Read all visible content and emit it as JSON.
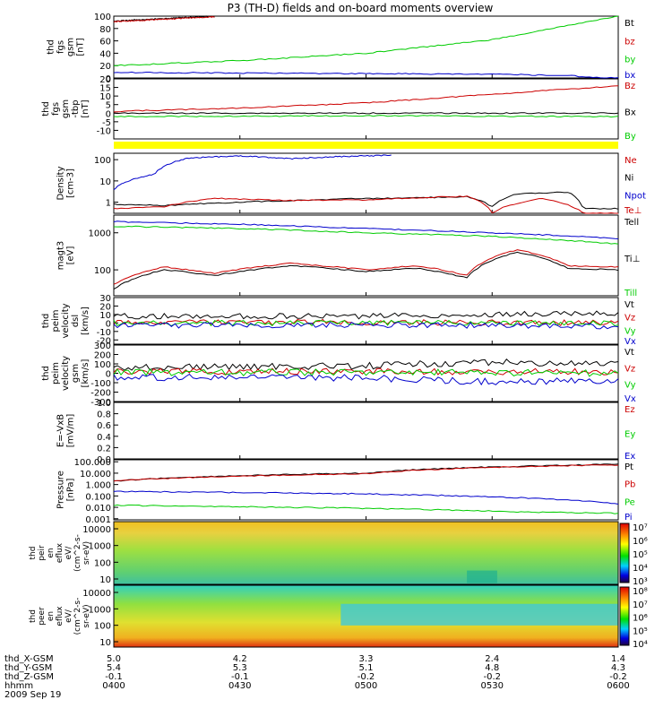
{
  "title": "P3 (TH-D) fields and on-board moments overview",
  "chart_data": {
    "type": "line",
    "panels": [
      {
        "ylabel": [
          "thd",
          "fgs",
          "gsm",
          "[nT]"
        ],
        "yticks": [
          "100",
          "80",
          "60",
          "40",
          "20",
          "0"
        ],
        "ylim": [
          0,
          100
        ],
        "legend": [
          {
            "label": "Bt",
            "color": "#000000"
          },
          {
            "label": "bz",
            "color": "#cc0000"
          },
          {
            "label": "by",
            "color": "#00cc00"
          },
          {
            "label": "bx",
            "color": "#0000cc"
          }
        ],
        "series": [
          {
            "color": "#000000",
            "x": [
              0,
              0.2
            ],
            "y": [
              92,
              100
            ]
          },
          {
            "color": "#cc0000",
            "x": [
              0,
              0.2
            ],
            "y": [
              91,
              99
            ]
          },
          {
            "color": "#00cc00",
            "x": [
              0,
              0.25,
              0.5,
              0.75,
              1
            ],
            "y": [
              20,
              28,
              40,
              62,
              100
            ]
          },
          {
            "color": "#0000cc",
            "x": [
              0,
              0.25,
              0.5,
              0.75,
              0.9,
              1
            ],
            "y": [
              9,
              8,
              7,
              6,
              4,
              -2
            ]
          }
        ]
      },
      {
        "ylabel": [
          "thd",
          "fgs",
          "gsm",
          "-tbp",
          "[nT]"
        ],
        "yticks": [
          "20",
          "15",
          "10",
          "5",
          "0",
          "-5",
          "-10"
        ],
        "ylim": [
          -15,
          20
        ],
        "legend": [
          {
            "label": "Bz",
            "color": "#cc0000"
          },
          {
            "label": "Bx",
            "color": "#000000"
          },
          {
            "label": "By",
            "color": "#00cc00"
          }
        ],
        "series": [
          {
            "color": "#cc0000",
            "x": [
              0,
              0.25,
              0.5,
              0.75,
              1
            ],
            "y": [
              1,
              3,
              6,
              11,
              16
            ]
          },
          {
            "color": "#000000",
            "x": [
              0,
              0.5,
              1
            ],
            "y": [
              0,
              0,
              0
            ]
          },
          {
            "color": "#00cc00",
            "x": [
              0,
              0.5,
              1
            ],
            "y": [
              -2,
              -1.5,
              -2
            ]
          }
        ]
      },
      {
        "ylabel": [
          "Density",
          "[cm-3]"
        ],
        "yticks": [
          "100",
          "10",
          "1"
        ],
        "ylog": true,
        "ylim": [
          0.3,
          200
        ],
        "legend": [
          {
            "label": "Ne",
            "color": "#cc0000"
          },
          {
            "label": "Ni",
            "color": "#000000"
          },
          {
            "label": "Npot",
            "color": "#0000cc"
          },
          {
            "label": "Te⊥",
            "color": "#cc0000"
          }
        ],
        "series": [
          {
            "color": "#0000cc",
            "x": [
              0,
              0.08,
              0.15,
              0.25,
              0.35,
              0.45,
              0.55
            ],
            "y": [
              4,
              20,
              120,
              150,
              110,
              140,
              160
            ]
          },
          {
            "color": "#000000",
            "x": [
              0,
              0.1,
              0.2,
              0.35,
              0.5,
              0.6,
              0.7,
              0.75,
              0.8,
              0.9,
              0.93,
              1
            ],
            "y": [
              0.8,
              0.7,
              0.9,
              1.2,
              1.5,
              1.6,
              1.8,
              0.6,
              2.5,
              3,
              0.5,
              0.5
            ]
          },
          {
            "color": "#cc0000",
            "x": [
              0,
              0.1,
              0.2,
              0.35,
              0.5,
              0.6,
              0.7,
              0.75,
              0.85,
              0.93,
              1
            ],
            "y": [
              0.5,
              0.6,
              1.5,
              1.2,
              1.3,
              1.6,
              1.9,
              0.3,
              1.5,
              0.3,
              0.3
            ]
          }
        ]
      },
      {
        "ylabel": [
          "magt3",
          "[eV]"
        ],
        "yticks": [
          "1000",
          "100"
        ],
        "ylog": true,
        "ylim": [
          20,
          3000
        ],
        "legend": [
          {
            "label": "Tell",
            "color": "#000000"
          },
          {
            "label": "Ti⊥",
            "color": "#000000"
          },
          {
            "label": "Till",
            "color": "#00cc00"
          }
        ],
        "series": [
          {
            "color": "#0000cc",
            "x": [
              0,
              0.25,
              0.5,
              0.75,
              1
            ],
            "y": [
              2000,
              1700,
              1300,
              1000,
              700
            ]
          },
          {
            "color": "#00cc00",
            "x": [
              0,
              0.25,
              0.5,
              0.75,
              1
            ],
            "y": [
              1500,
              1300,
              1000,
              800,
              500
            ]
          },
          {
            "color": "#cc0000",
            "x": [
              0,
              0.1,
              0.2,
              0.35,
              0.5,
              0.6,
              0.7,
              0.8,
              0.9,
              1
            ],
            "y": [
              40,
              120,
              80,
              150,
              100,
              130,
              70,
              350,
              130,
              120
            ]
          },
          {
            "color": "#000000",
            "x": [
              0,
              0.1,
              0.2,
              0.35,
              0.5,
              0.6,
              0.7,
              0.8,
              0.9,
              1
            ],
            "y": [
              30,
              100,
              70,
              130,
              90,
              110,
              60,
              300,
              110,
              100
            ]
          }
        ]
      },
      {
        "ylabel": [
          "thd",
          "peim",
          "velocity",
          "dsl",
          "[km/s]"
        ],
        "yticks": [
          "30",
          "20",
          "10",
          "0",
          "-10",
          "-20"
        ],
        "ylim": [
          -25,
          30
        ],
        "legend": [
          {
            "label": "Vt",
            "color": "#000000"
          },
          {
            "label": "Vz",
            "color": "#cc0000"
          },
          {
            "label": "Vy",
            "color": "#00cc00"
          },
          {
            "label": "Vx",
            "color": "#0000cc"
          }
        ],
        "series": [
          {
            "color": "#000000",
            "x": [
              0,
              0.5,
              1
            ],
            "y": [
              8,
              8,
              12
            ]
          },
          {
            "color": "#cc0000",
            "x": [
              0,
              0.5,
              1
            ],
            "y": [
              0,
              1,
              0
            ]
          },
          {
            "color": "#00cc00",
            "x": [
              0,
              0.5,
              1
            ],
            "y": [
              0,
              0,
              0
            ]
          },
          {
            "color": "#0000cc",
            "x": [
              0,
              0.5,
              1
            ],
            "y": [
              -3,
              -2,
              -4
            ]
          }
        ]
      },
      {
        "ylabel": [
          "thd",
          "peim",
          "velocity",
          "gsm",
          "[km/s]"
        ],
        "yticks": [
          "300",
          "200",
          "100",
          "0",
          "-100",
          "-200",
          "-300"
        ],
        "ylim": [
          -300,
          300
        ],
        "legend": [
          {
            "label": "Vt",
            "color": "#000000"
          },
          {
            "label": "Vz",
            "color": "#cc0000"
          },
          {
            "label": "Vy",
            "color": "#00cc00"
          },
          {
            "label": "Vx",
            "color": "#0000cc"
          }
        ],
        "series": [
          {
            "color": "#000000",
            "x": [
              0,
              0.5,
              0.75,
              1
            ],
            "y": [
              60,
              80,
              120,
              90
            ]
          },
          {
            "color": "#cc0000",
            "x": [
              0,
              0.5,
              1
            ],
            "y": [
              20,
              20,
              20
            ]
          },
          {
            "color": "#00cc00",
            "x": [
              0,
              0.5,
              1
            ],
            "y": [
              10,
              10,
              0
            ]
          },
          {
            "color": "#0000cc",
            "x": [
              0,
              0.5,
              0.75,
              1
            ],
            "y": [
              -40,
              -50,
              -90,
              -80
            ]
          }
        ]
      },
      {
        "ylabel": [
          "E=-VxB",
          "[mV/m]"
        ],
        "yticks": [
          "1.0",
          "0.8",
          "0.6",
          "0.4",
          "0.2",
          "0.0"
        ],
        "ylim": [
          0,
          1
        ],
        "legend": [
          {
            "label": "Ez",
            "color": "#cc0000"
          },
          {
            "label": "Ey",
            "color": "#00cc00"
          },
          {
            "label": "Ex",
            "color": "#0000cc"
          }
        ],
        "series": []
      },
      {
        "ylabel": [
          "Pressure",
          "[nPa]"
        ],
        "yticks": [
          "100.000",
          "10.000",
          "1.000",
          "0.100",
          "0.010",
          "0.001"
        ],
        "ylog": true,
        "ylim": [
          0.0008,
          150
        ],
        "legend": [
          {
            "label": "Pt",
            "color": "#000000"
          },
          {
            "label": "Pb",
            "color": "#cc0000"
          },
          {
            "label": "Pe",
            "color": "#00cc00"
          },
          {
            "label": "Pi",
            "color": "#0000cc"
          }
        ],
        "series": [
          {
            "color": "#000000",
            "x": [
              0,
              0.5,
              1
            ],
            "y": [
              2,
              10,
              60
            ]
          },
          {
            "color": "#cc0000",
            "x": [
              0,
              0.5,
              1
            ],
            "y": [
              2,
              9,
              55
            ]
          },
          {
            "color": "#0000cc",
            "x": [
              0,
              0.5,
              0.8,
              1
            ],
            "y": [
              0.25,
              0.15,
              0.07,
              0.02
            ]
          },
          {
            "color": "#00cc00",
            "x": [
              0,
              0.5,
              0.8,
              1
            ],
            "y": [
              0.015,
              0.008,
              0.004,
              0.003
            ]
          }
        ]
      }
    ],
    "spectrograms": [
      {
        "ylabel": [
          "thd",
          "peir",
          "en",
          "eflux",
          "eV/",
          "(cm^2-s-",
          "sr-eV)"
        ],
        "yticks": [
          "10000",
          "1000",
          "100",
          "10"
        ],
        "cbar_labels": [
          "10⁷",
          "10⁶",
          "10⁵",
          "10⁴",
          "10³"
        ]
      },
      {
        "ylabel": [
          "thd",
          "peer",
          "en",
          "eflux",
          "eV/",
          "(cm^2-s-",
          "sr-eV)"
        ],
        "yticks": [
          "10000",
          "1000",
          "100",
          "10"
        ],
        "cbar_labels": [
          "10⁸",
          "10⁷",
          "10⁶",
          "10⁵",
          "10⁴"
        ]
      }
    ],
    "x_axis": {
      "rows": [
        {
          "label": "thd_X-GSM",
          "values": [
            "5.0",
            "4.2",
            "3.3",
            "2.4",
            "1.4"
          ]
        },
        {
          "label": "thd_Y-GSM",
          "values": [
            "5.4",
            "5.3",
            "5.1",
            "4.8",
            "4.3"
          ]
        },
        {
          "label": "thd_Z-GSM",
          "values": [
            "-0.1",
            "-0.1",
            "-0.2",
            "-0.2",
            "-0.2"
          ]
        },
        {
          "label": "hhmm",
          "values": [
            "0400",
            "0430",
            "0500",
            "0530",
            "0600"
          ]
        }
      ],
      "date": "2009 Sep 19"
    }
  }
}
